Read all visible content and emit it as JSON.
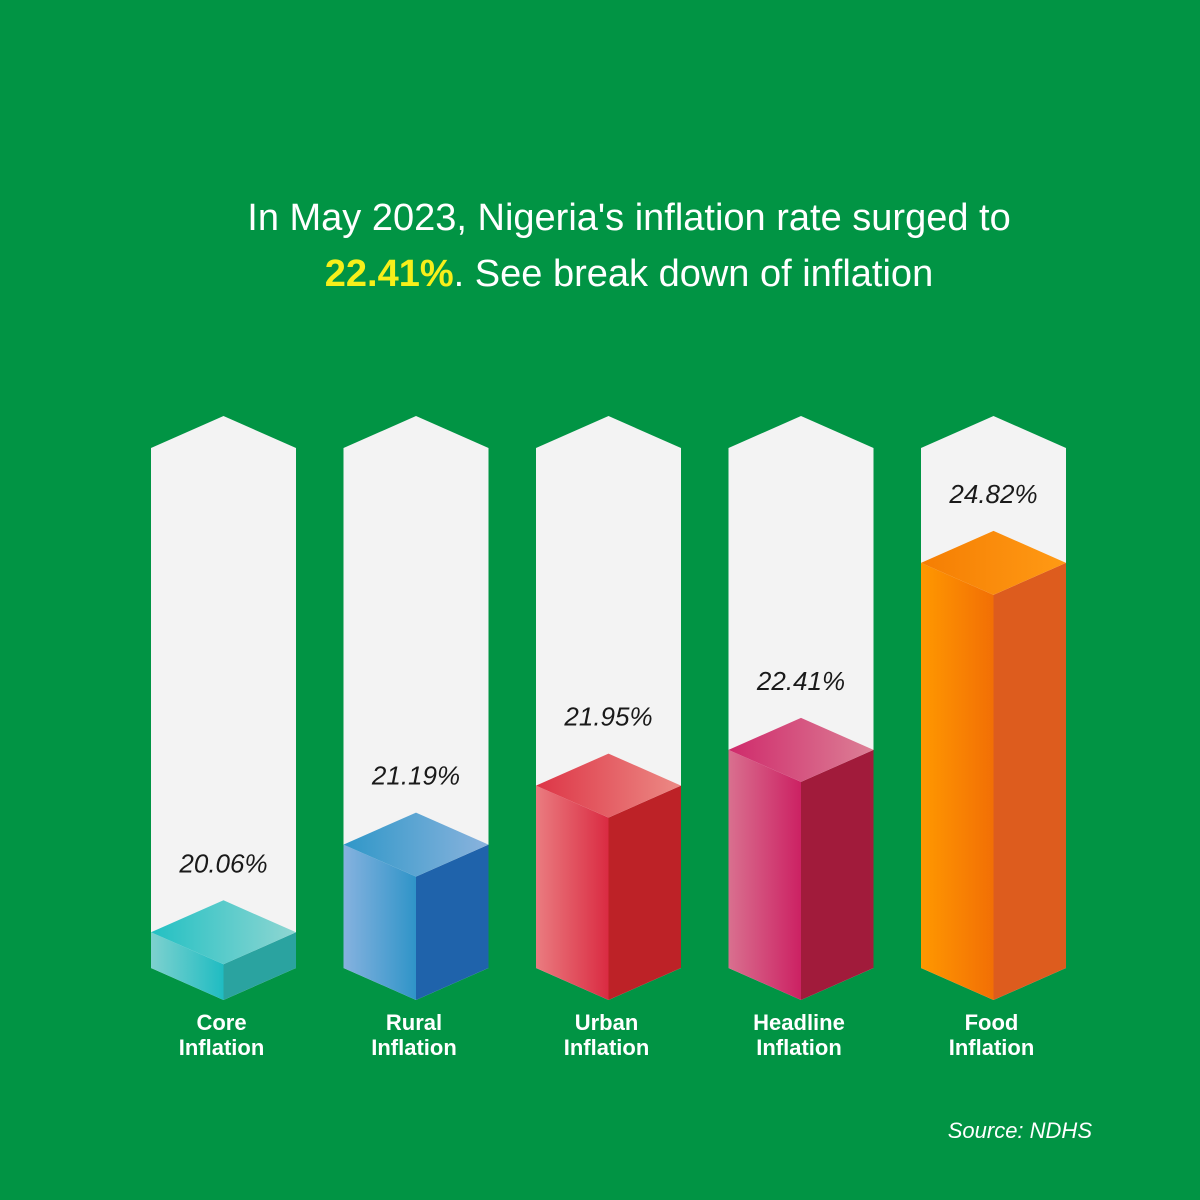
{
  "headline": {
    "line1": "In May 2023, Nigeria's inflation rate surged to",
    "highlight": "22.41%",
    "line2_rest": ". See break down of inflation"
  },
  "chart_data": {
    "type": "bar",
    "title": "In May 2023, Nigeria's inflation rate surged to 22.41%. See break down of inflation",
    "categories": [
      [
        "Core",
        "Inflation"
      ],
      [
        "Rural",
        "Inflation"
      ],
      [
        "Urban",
        "Inflation"
      ],
      [
        "Headline",
        "Inflation"
      ],
      [
        "Food",
        "Inflation"
      ]
    ],
    "values": [
      20.06,
      21.19,
      21.95,
      22.41,
      24.82
    ],
    "value_labels": [
      "20.06%",
      "21.19%",
      "21.95%",
      "22.41%",
      "24.82%"
    ],
    "ylim": [
      19.6,
      26.3
    ],
    "colors": [
      {
        "front_light": "#7ed1cf",
        "front_dark": "#1fbcc2",
        "side": "#2aa3a0",
        "top_light": "#22c0c3",
        "top_dark": "#8fd6d2"
      },
      {
        "front_light": "#86b2df",
        "front_dark": "#2f94c8",
        "side": "#1f63ab",
        "top_light": "#2f97c8",
        "top_dark": "#8ab3dd"
      },
      {
        "front_light": "#ea7c80",
        "front_dark": "#da2b42",
        "side": "#bd2227",
        "top_light": "#dd3546",
        "top_dark": "#ec8a85"
      },
      {
        "front_light": "#d9708f",
        "front_dark": "#cc2163",
        "side": "#a11b3b",
        "top_light": "#cf2a6b",
        "top_dark": "#dc8096"
      },
      {
        "front_light": "#ff9800",
        "front_dark": "#f26f05",
        "side": "#dd5c1e",
        "top_light": "#f57e03",
        "top_dark": "#ff9a14"
      }
    ]
  },
  "source": "Source: NDHS"
}
